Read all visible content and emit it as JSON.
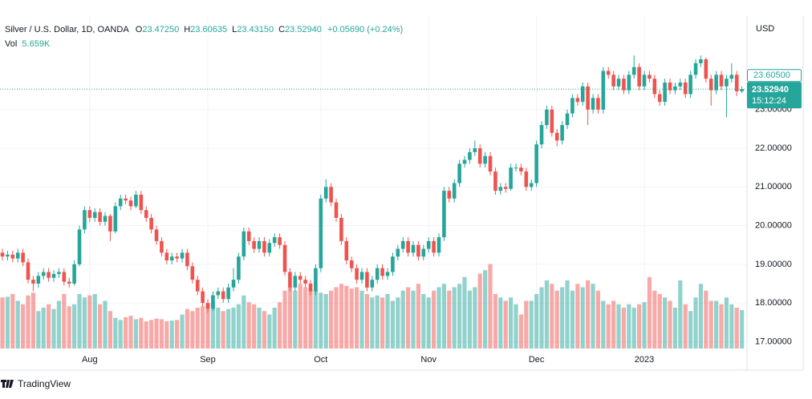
{
  "chart_data": {
    "type": "candlestick",
    "legend_header": {
      "symbol": "Silver / U.S. Dollar, 1D, OANDA",
      "fields": [
        {
          "label": "O",
          "value": "23.47250"
        },
        {
          "label": "H",
          "value": "23.60635"
        },
        {
          "label": "L",
          "value": "23.43150"
        },
        {
          "label": "C",
          "value": "23.52940"
        }
      ],
      "change": "+0.05690 (+0.24%)",
      "vol_label": "Vol",
      "vol_value": "5.659K"
    },
    "currency": "USD",
    "up_color": "#26a69a",
    "down_color": "#ef5350",
    "xlim": [
      -0.47,
      144.84
    ],
    "xticks": [
      {
        "value": 17,
        "label": "Aug"
      },
      {
        "value": 40,
        "label": "Sep"
      },
      {
        "value": 62,
        "label": "Oct"
      },
      {
        "value": 83,
        "label": "Nov"
      },
      {
        "value": 104,
        "label": "Dec"
      },
      {
        "value": 125,
        "label": "2023"
      }
    ],
    "ylim": [
      16.78,
      25.42
    ],
    "yticks": [
      {
        "value": 17,
        "label": "17.00000"
      },
      {
        "value": 18,
        "label": "18.00000"
      },
      {
        "value": 19,
        "label": "19.00000"
      },
      {
        "value": 20,
        "label": "20.00000"
      },
      {
        "value": 21,
        "label": "21.00000"
      },
      {
        "value": 22,
        "label": "22.00000"
      },
      {
        "value": 23,
        "label": "23.00000"
      }
    ],
    "grid": true,
    "last_price": {
      "value": 23.5294,
      "label": "23.52940",
      "countdown": "15:12:24"
    },
    "marker": {
      "value": 23.605,
      "label": "23.60500"
    },
    "ohlc": [
      [
        19.3,
        19.4,
        19.1,
        19.2
      ],
      [
        19.2,
        19.35,
        19.1,
        19.25
      ],
      [
        19.25,
        19.35,
        19.05,
        19.15
      ],
      [
        19.15,
        19.4,
        19.05,
        19.3
      ],
      [
        19.3,
        19.4,
        18.95,
        19.05
      ],
      [
        19.05,
        19.15,
        18.5,
        18.6
      ],
      [
        18.6,
        18.7,
        18.3,
        18.5
      ],
      [
        18.5,
        18.8,
        18.4,
        18.7
      ],
      [
        18.7,
        18.9,
        18.6,
        18.8
      ],
      [
        18.8,
        18.9,
        18.55,
        18.65
      ],
      [
        18.65,
        18.85,
        18.55,
        18.75
      ],
      [
        18.75,
        18.9,
        18.65,
        18.8
      ],
      [
        18.8,
        18.9,
        18.45,
        18.55
      ],
      [
        18.55,
        18.65,
        18.4,
        18.5
      ],
      [
        18.5,
        19.1,
        18.45,
        19.0
      ],
      [
        19.0,
        20.0,
        18.95,
        19.9
      ],
      [
        19.9,
        20.5,
        19.8,
        20.4
      ],
      [
        20.4,
        20.5,
        20.1,
        20.2
      ],
      [
        20.2,
        20.45,
        20.1,
        20.35
      ],
      [
        20.35,
        20.45,
        20.0,
        20.1
      ],
      [
        20.1,
        20.35,
        20.0,
        20.25
      ],
      [
        20.25,
        20.3,
        19.6,
        19.85
      ],
      [
        19.85,
        20.6,
        19.8,
        20.5
      ],
      [
        20.5,
        20.8,
        20.4,
        20.7
      ],
      [
        20.7,
        20.8,
        20.55,
        20.65
      ],
      [
        20.65,
        20.75,
        20.4,
        20.5
      ],
      [
        20.5,
        20.9,
        20.45,
        20.8
      ],
      [
        20.8,
        20.9,
        20.3,
        20.4
      ],
      [
        20.4,
        20.5,
        20.1,
        20.2
      ],
      [
        20.2,
        20.3,
        19.8,
        19.9
      ],
      [
        19.9,
        20.0,
        19.5,
        19.6
      ],
      [
        19.6,
        19.7,
        19.2,
        19.3
      ],
      [
        19.3,
        19.4,
        19.0,
        19.1
      ],
      [
        19.1,
        19.3,
        19.0,
        19.2
      ],
      [
        19.2,
        19.3,
        19.05,
        19.15
      ],
      [
        19.15,
        19.4,
        19.05,
        19.3
      ],
      [
        19.3,
        19.4,
        18.85,
        18.95
      ],
      [
        18.95,
        19.05,
        18.5,
        18.6
      ],
      [
        18.6,
        18.7,
        18.2,
        18.3
      ],
      [
        18.3,
        18.4,
        17.9,
        18.0
      ],
      [
        18.0,
        18.1,
        17.75,
        17.85
      ],
      [
        17.85,
        18.3,
        17.8,
        18.2
      ],
      [
        18.2,
        18.4,
        18.1,
        18.3
      ],
      [
        18.3,
        18.4,
        18.0,
        18.1
      ],
      [
        18.1,
        18.5,
        18.0,
        18.4
      ],
      [
        18.4,
        18.9,
        18.3,
        18.6
      ],
      [
        18.6,
        19.3,
        18.5,
        19.2
      ],
      [
        19.2,
        19.95,
        19.1,
        19.85
      ],
      [
        19.85,
        19.95,
        19.5,
        19.6
      ],
      [
        19.6,
        19.7,
        19.3,
        19.4
      ],
      [
        19.4,
        19.7,
        19.3,
        19.6
      ],
      [
        19.6,
        19.7,
        19.2,
        19.3
      ],
      [
        19.3,
        19.65,
        19.2,
        19.55
      ],
      [
        19.55,
        19.8,
        19.45,
        19.7
      ],
      [
        19.7,
        19.8,
        19.4,
        19.5
      ],
      [
        19.5,
        19.6,
        18.7,
        18.8
      ],
      [
        18.8,
        18.9,
        18.3,
        18.4
      ],
      [
        18.4,
        18.8,
        18.3,
        18.7
      ],
      [
        18.7,
        18.8,
        18.5,
        18.6
      ],
      [
        18.6,
        18.7,
        18.4,
        18.5
      ],
      [
        18.5,
        18.6,
        18.2,
        18.3
      ],
      [
        18.3,
        19.0,
        18.2,
        18.9
      ],
      [
        18.9,
        20.8,
        18.8,
        20.7
      ],
      [
        20.7,
        21.2,
        20.6,
        21.0
      ],
      [
        21.0,
        21.1,
        20.5,
        20.6
      ],
      [
        20.6,
        20.7,
        20.1,
        20.2
      ],
      [
        20.2,
        20.3,
        19.5,
        19.6
      ],
      [
        19.6,
        19.7,
        19.0,
        19.1
      ],
      [
        19.1,
        19.2,
        18.8,
        18.9
      ],
      [
        18.9,
        19.0,
        18.5,
        18.6
      ],
      [
        18.6,
        18.9,
        18.5,
        18.8
      ],
      [
        18.8,
        18.9,
        18.3,
        18.4
      ],
      [
        18.4,
        18.7,
        18.3,
        18.6
      ],
      [
        18.6,
        19.0,
        18.5,
        18.9
      ],
      [
        18.9,
        19.0,
        18.6,
        18.7
      ],
      [
        18.7,
        18.9,
        18.6,
        18.8
      ],
      [
        18.8,
        19.3,
        18.7,
        19.2
      ],
      [
        19.2,
        19.5,
        19.1,
        19.4
      ],
      [
        19.4,
        19.7,
        19.3,
        19.6
      ],
      [
        19.6,
        19.7,
        19.2,
        19.3
      ],
      [
        19.3,
        19.6,
        19.2,
        19.5
      ],
      [
        19.5,
        19.6,
        19.1,
        19.2
      ],
      [
        19.2,
        19.5,
        19.1,
        19.4
      ],
      [
        19.4,
        19.7,
        19.3,
        19.6
      ],
      [
        19.6,
        19.7,
        19.2,
        19.3
      ],
      [
        19.3,
        19.8,
        19.2,
        19.7
      ],
      [
        19.7,
        21.0,
        19.6,
        20.9
      ],
      [
        20.9,
        21.0,
        20.6,
        20.7
      ],
      [
        20.7,
        21.2,
        20.6,
        21.1
      ],
      [
        21.1,
        21.7,
        21.0,
        21.6
      ],
      [
        21.6,
        21.8,
        21.5,
        21.7
      ],
      [
        21.7,
        22.0,
        21.6,
        21.9
      ],
      [
        21.9,
        22.2,
        21.8,
        22.0
      ],
      [
        22.0,
        22.1,
        21.5,
        21.6
      ],
      [
        21.6,
        21.9,
        21.5,
        21.8
      ],
      [
        21.8,
        21.9,
        21.3,
        21.4
      ],
      [
        21.4,
        21.5,
        20.8,
        20.9
      ],
      [
        20.9,
        21.1,
        20.8,
        21.0
      ],
      [
        21.0,
        21.1,
        20.85,
        20.95
      ],
      [
        20.95,
        21.6,
        20.9,
        21.5
      ],
      [
        21.5,
        21.6,
        21.4,
        21.5
      ],
      [
        21.5,
        21.6,
        21.3,
        21.4
      ],
      [
        21.4,
        21.5,
        20.9,
        21.0
      ],
      [
        21.0,
        21.2,
        20.9,
        21.1
      ],
      [
        21.1,
        22.2,
        21.0,
        22.1
      ],
      [
        22.1,
        22.7,
        22.0,
        22.6
      ],
      [
        22.6,
        23.1,
        22.5,
        23.0
      ],
      [
        23.0,
        23.1,
        22.3,
        22.4
      ],
      [
        22.4,
        22.5,
        22.05,
        22.2
      ],
      [
        22.2,
        22.7,
        22.1,
        22.6
      ],
      [
        22.6,
        23.0,
        22.5,
        22.9
      ],
      [
        22.9,
        23.4,
        22.8,
        23.3
      ],
      [
        23.3,
        23.4,
        23.1,
        23.2
      ],
      [
        23.2,
        23.7,
        23.1,
        23.6
      ],
      [
        23.6,
        23.7,
        22.6,
        23.0
      ],
      [
        23.0,
        23.4,
        22.9,
        23.3
      ],
      [
        23.3,
        23.4,
        22.9,
        23.0
      ],
      [
        23.0,
        24.1,
        22.9,
        24.0
      ],
      [
        24.0,
        24.1,
        23.8,
        23.9
      ],
      [
        23.9,
        24.0,
        23.5,
        23.6
      ],
      [
        23.6,
        23.9,
        23.5,
        23.8
      ],
      [
        23.8,
        23.9,
        23.4,
        23.5
      ],
      [
        23.5,
        24.0,
        23.4,
        23.9
      ],
      [
        23.9,
        24.4,
        23.8,
        24.1
      ],
      [
        24.1,
        24.2,
        23.5,
        23.6
      ],
      [
        23.6,
        24.0,
        23.5,
        23.9
      ],
      [
        23.9,
        24.0,
        23.7,
        23.8
      ],
      [
        23.8,
        23.9,
        23.3,
        23.4
      ],
      [
        23.4,
        23.5,
        23.1,
        23.2
      ],
      [
        23.2,
        23.8,
        23.1,
        23.7
      ],
      [
        23.7,
        23.8,
        23.4,
        23.5
      ],
      [
        23.5,
        23.7,
        23.4,
        23.6
      ],
      [
        23.6,
        23.8,
        23.5,
        23.7
      ],
      [
        23.7,
        23.8,
        23.3,
        23.4
      ],
      [
        23.4,
        24.0,
        23.3,
        23.9
      ],
      [
        23.9,
        24.3,
        23.8,
        24.2
      ],
      [
        24.2,
        24.4,
        24.1,
        24.3
      ],
      [
        24.3,
        24.35,
        23.7,
        23.8
      ],
      [
        23.8,
        23.9,
        23.1,
        23.5
      ],
      [
        23.5,
        24.0,
        23.4,
        23.9
      ],
      [
        23.9,
        24.0,
        23.5,
        23.6
      ],
      [
        23.6,
        23.9,
        22.8,
        23.8
      ],
      [
        23.8,
        24.2,
        23.7,
        23.9
      ],
      [
        23.9,
        24.0,
        23.35,
        23.4725
      ],
      [
        23.4725,
        23.60635,
        23.4315,
        23.5294
      ]
    ],
    "volume": [
      7.5,
      7.6,
      8.0,
      7.0,
      6.5,
      7.8,
      8.2,
      5.5,
      6.0,
      6.5,
      5.8,
      7.0,
      8.0,
      6.2,
      6.5,
      8.0,
      7.5,
      7.8,
      8.0,
      6.5,
      7.0,
      5.5,
      4.5,
      4.2,
      4.6,
      4.8,
      4.3,
      4.5,
      4.0,
      4.2,
      4.4,
      4.3,
      4.0,
      4.1,
      4.2,
      5.0,
      5.8,
      5.5,
      6.0,
      6.2,
      6.5,
      6.8,
      6.0,
      5.5,
      5.8,
      6.0,
      6.5,
      7.8,
      6.8,
      6.5,
      6.0,
      5.5,
      5.0,
      6.0,
      6.8,
      8.5,
      9.0,
      8.5,
      9.5,
      9.0,
      8.8,
      8.5,
      8.2,
      8.0,
      8.5,
      9.0,
      9.5,
      9.2,
      8.8,
      9.0,
      8.5,
      8.0,
      7.5,
      7.8,
      7.5,
      8.0,
      7.0,
      7.5,
      8.5,
      9.0,
      8.5,
      9.5,
      8.0,
      7.5,
      8.5,
      9.0,
      9.5,
      8.5,
      9.0,
      9.5,
      10.5,
      8.5,
      9.0,
      11.0,
      11.5,
      12.4,
      8.0,
      7.5,
      7.0,
      7.5,
      6.5,
      5.0,
      7.0,
      7.0,
      8.0,
      9.0,
      10.0,
      9.5,
      8.5,
      9.0,
      10.0,
      8.5,
      9.5,
      9.0,
      10.0,
      9.5,
      8.5,
      7.0,
      6.5,
      7.0,
      6.5,
      6.0,
      6.5,
      6.0,
      6.5,
      6.8,
      10.5,
      8.5,
      8.0,
      7.5,
      7.0,
      6.0,
      10.0,
      6.5,
      5.5,
      7.5,
      9.5,
      8.5,
      7.0,
      7.0,
      6.5,
      7.5,
      6.5,
      6.0,
      5.659
    ]
  },
  "brand": "TradingView"
}
